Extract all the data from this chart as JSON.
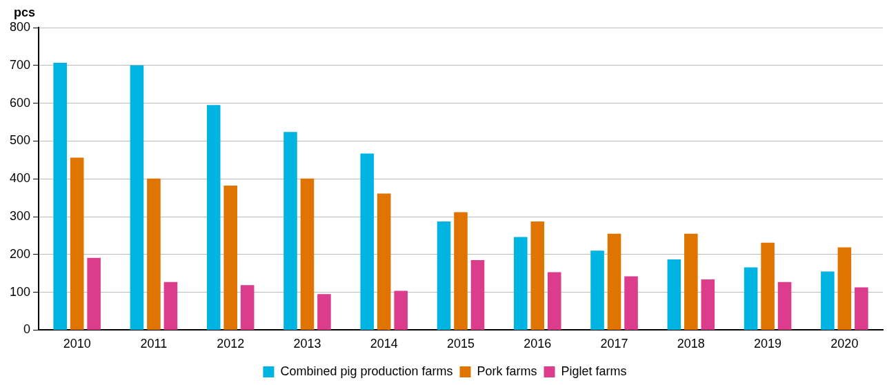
{
  "chart_data": {
    "type": "bar",
    "ylabel": "pcs",
    "categories": [
      "2010",
      "2011",
      "2012",
      "2013",
      "2014",
      "2015",
      "2016",
      "2017",
      "2018",
      "2019",
      "2020"
    ],
    "series": [
      {
        "name": "Combined pig production farms",
        "color": "#00b4e1",
        "values": [
          707,
          700,
          595,
          524,
          467,
          287,
          246,
          210,
          187,
          166,
          155
        ]
      },
      {
        "name": "Pork farms",
        "color": "#e07400",
        "values": [
          456,
          401,
          382,
          401,
          361,
          312,
          287,
          255,
          255,
          231,
          219
        ]
      },
      {
        "name": "Piglet farms",
        "color": "#dc3c8c",
        "values": [
          191,
          127,
          119,
          95,
          104,
          185,
          153,
          142,
          134,
          127,
          113
        ]
      }
    ],
    "ylim": [
      0,
      800
    ],
    "yticks": [
      0,
      100,
      200,
      300,
      400,
      500,
      600,
      700,
      800
    ],
    "grid": "y",
    "legend": "bottom"
  }
}
